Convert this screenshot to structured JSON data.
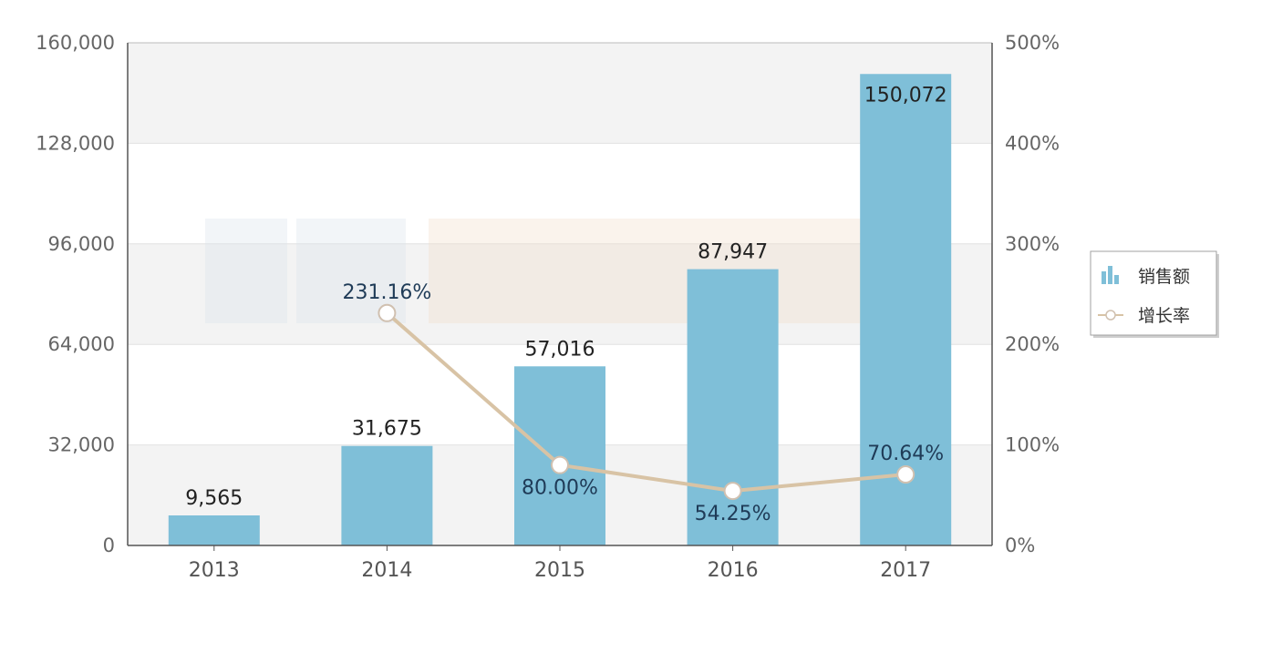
{
  "chart_data": {
    "type": "bar",
    "categories": [
      "2013",
      "2014",
      "2015",
      "2016",
      "2017"
    ],
    "series": [
      {
        "name": "销售额",
        "type": "bar",
        "axis": "left",
        "values": [
          9565,
          31675,
          57016,
          87947,
          150072
        ],
        "labels": [
          "9,565",
          "31,675",
          "57,016",
          "87,947",
          "150,072"
        ]
      },
      {
        "name": "增长率",
        "type": "line",
        "axis": "right",
        "values": [
          null,
          231.16,
          80.0,
          54.25,
          70.64
        ],
        "labels": [
          "",
          "231.16%",
          "80.00%",
          "54.25%",
          "70.64%"
        ]
      }
    ],
    "y_left": {
      "range": [
        0,
        160000
      ],
      "ticks": [
        0,
        32000,
        64000,
        96000,
        128000,
        160000
      ],
      "tick_labels": [
        "0",
        "32,000",
        "64,000",
        "96,000",
        "128,000",
        "160,000"
      ]
    },
    "y_right": {
      "range": [
        0,
        500
      ],
      "ticks": [
        0,
        100,
        200,
        300,
        400,
        500
      ],
      "tick_labels": [
        "0%",
        "100%",
        "200%",
        "300%",
        "400%",
        "500%"
      ]
    },
    "title": "",
    "xlabel": "",
    "ylabel": "",
    "grid": true,
    "legend": "right",
    "colors": {
      "bar": "#7fbfd8",
      "line": "#d8c3a5",
      "marker_fill": "#ffffff",
      "marker_stroke": "#d0c0b0",
      "band": "#f3f3f3",
      "axis": "#555555"
    }
  }
}
